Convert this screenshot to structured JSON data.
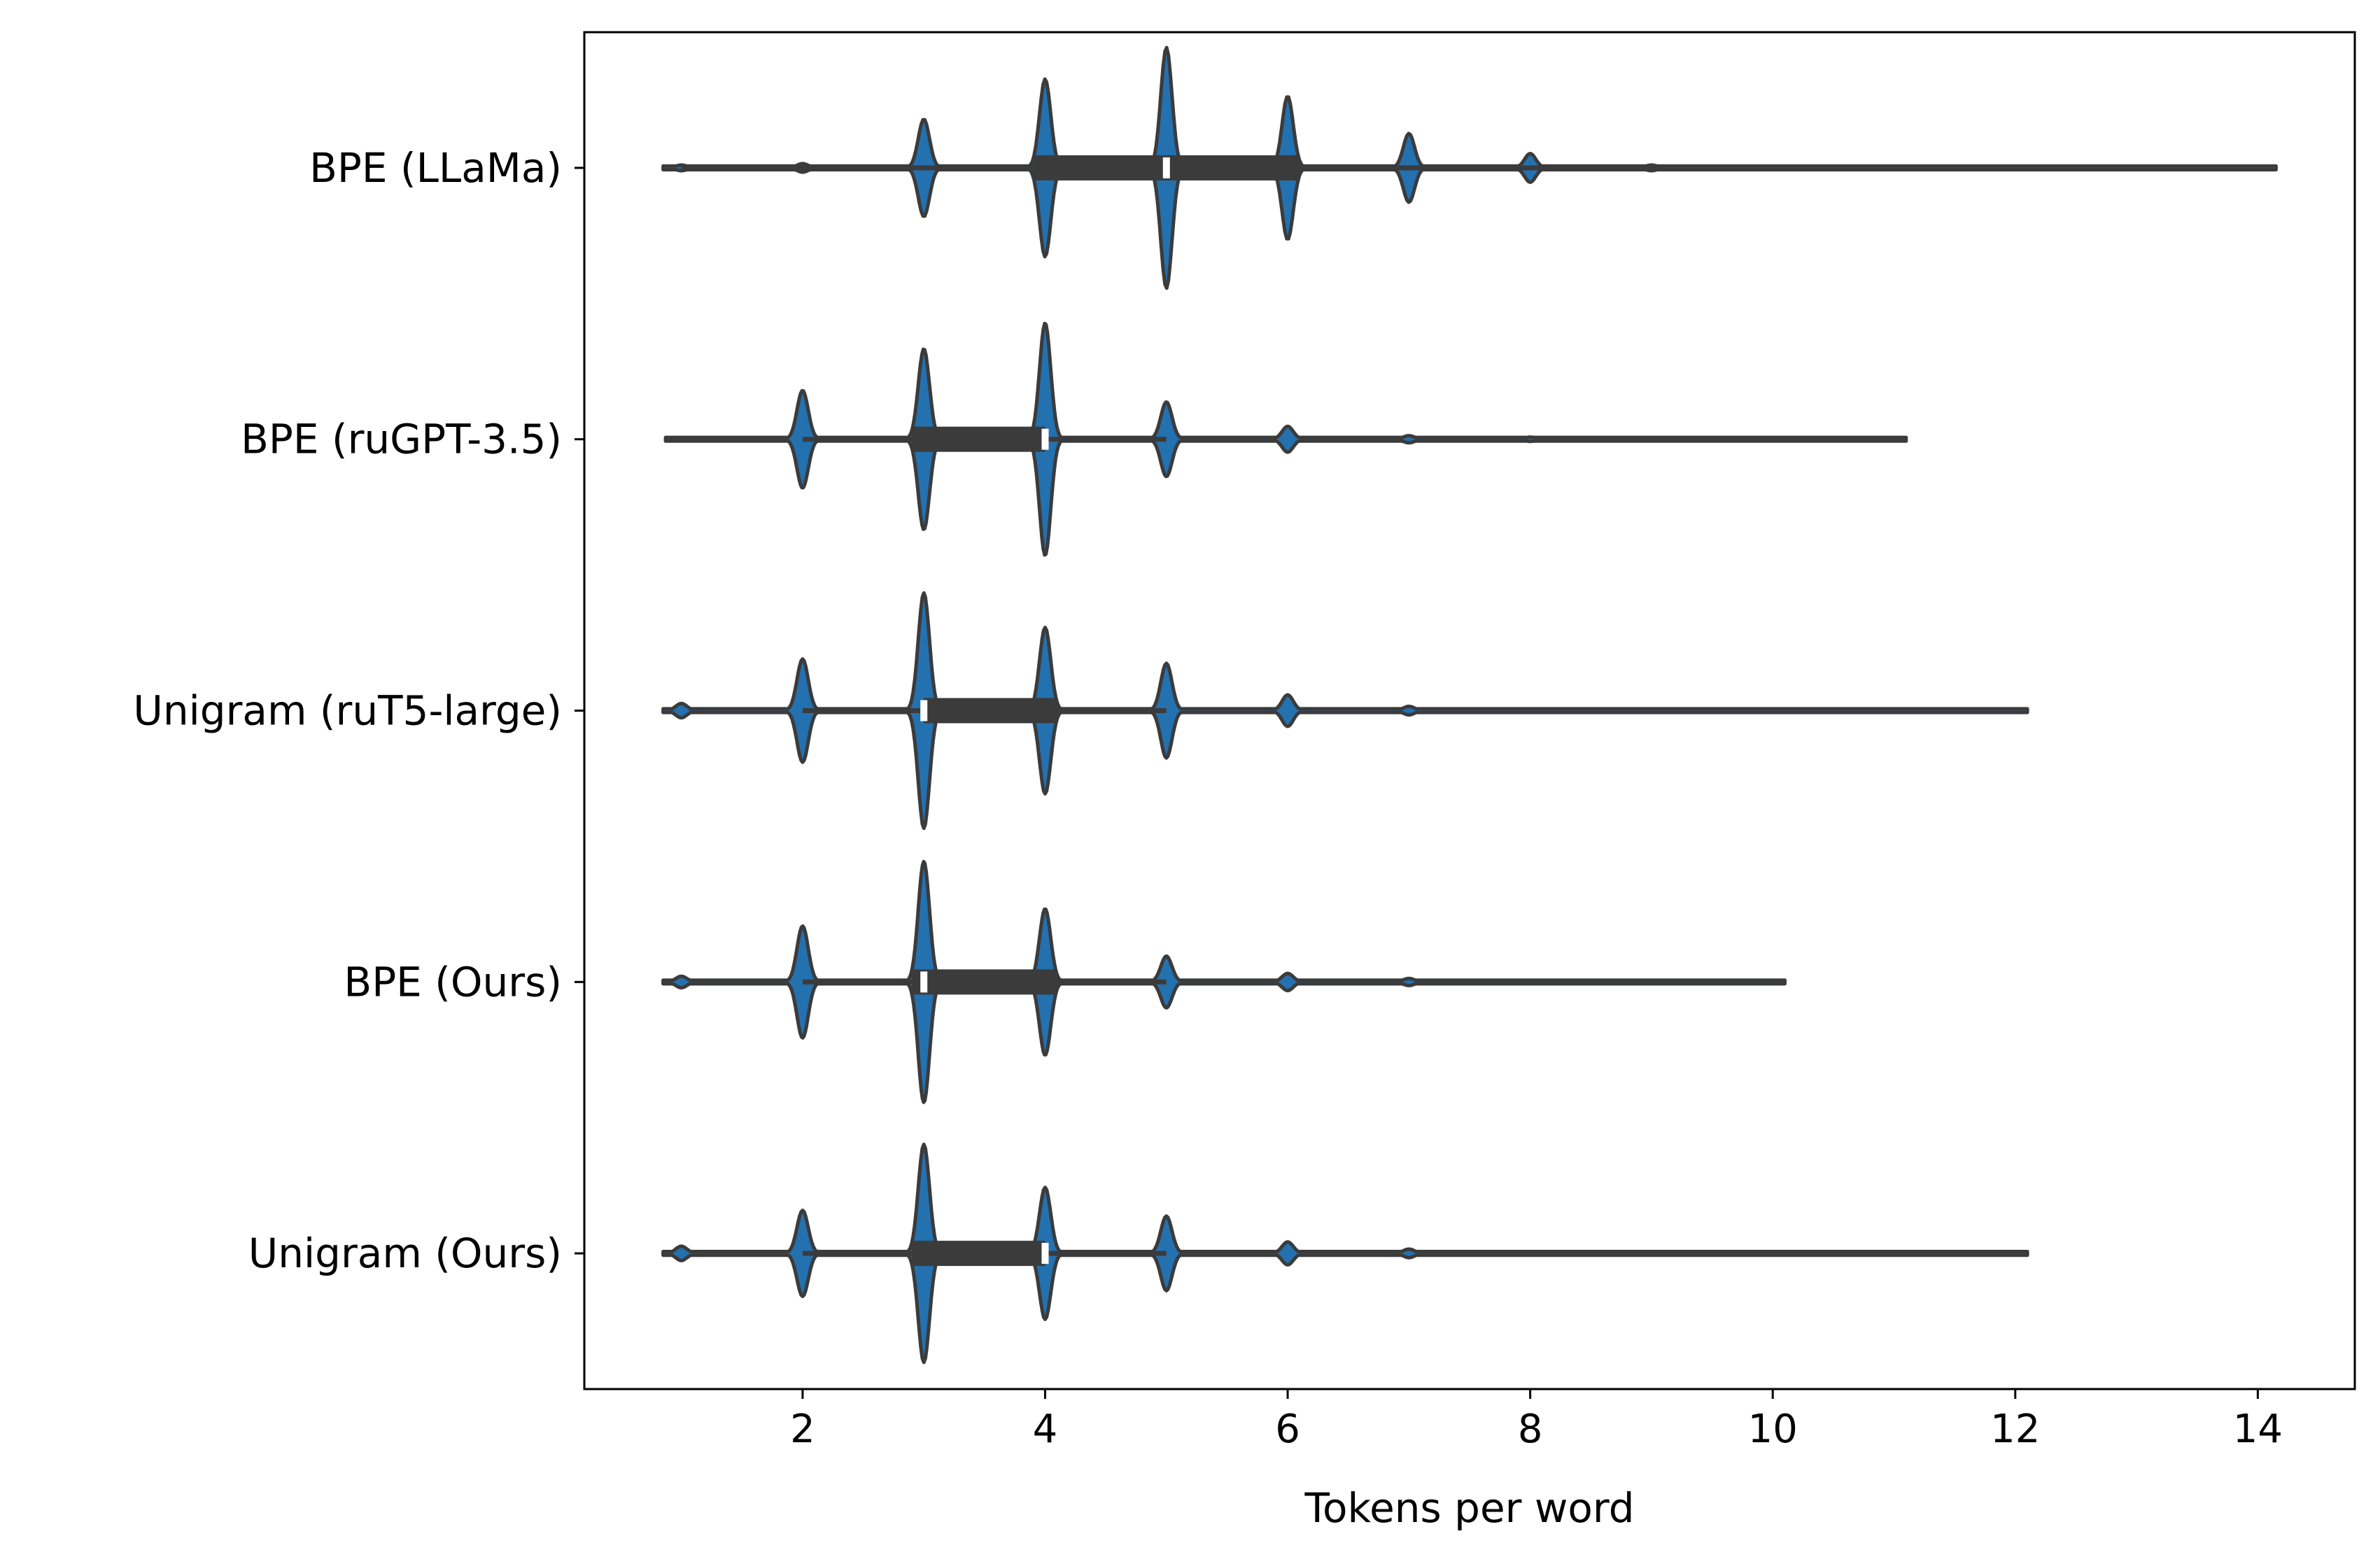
{
  "chart_data": {
    "type": "violin",
    "orientation": "horizontal",
    "xlabel": "Tokens per word",
    "ylabel": "",
    "xlim": [
      0.2,
      14.8
    ],
    "xticks": [
      2,
      4,
      6,
      8,
      10,
      12,
      14
    ],
    "grid": false,
    "colors": {
      "fill": "#2471b0",
      "edge": "#3b3b3b",
      "median": "#ffffff"
    },
    "categories": [
      "BPE (LLaMa)",
      "BPE (ruGPT-3.5)",
      "Unigram (ruT5-large)",
      "BPE (Ours)",
      "Unigram (Ours)"
    ],
    "series": [
      {
        "name": "BPE (LLaMa)",
        "min": 0.85,
        "max": 14.15,
        "q1": 3.9,
        "median": 5.0,
        "q3": 6.1,
        "whisker": [
          1.0,
          9.1
        ],
        "peaks": [
          [
            1,
            0.02
          ],
          [
            2,
            0.03
          ],
          [
            3,
            0.34
          ],
          [
            4,
            0.62
          ],
          [
            5,
            0.84
          ],
          [
            6,
            0.5
          ],
          [
            7,
            0.24
          ],
          [
            8,
            0.1
          ],
          [
            9,
            0.02
          ]
        ]
      },
      {
        "name": "BPE (ruGPT-3.5)",
        "min": 0.87,
        "max": 11.1,
        "q1": 2.9,
        "median": 4.0,
        "q3": 4.0,
        "whisker": [
          2.0,
          5.0
        ],
        "peaks": [
          [
            2,
            0.34
          ],
          [
            3,
            0.63
          ],
          [
            4,
            0.81
          ],
          [
            5,
            0.26
          ],
          [
            6,
            0.09
          ],
          [
            7,
            0.025
          ],
          [
            8,
            0.015
          ]
        ]
      },
      {
        "name": "Unigram (ruT5-large)",
        "min": 0.85,
        "max": 12.1,
        "q1": 3.0,
        "median": 3.0,
        "q3": 4.1,
        "whisker": [
          2.0,
          5.0
        ],
        "peaks": [
          [
            1,
            0.05
          ],
          [
            2,
            0.36
          ],
          [
            3,
            0.82
          ],
          [
            4,
            0.58
          ],
          [
            5,
            0.33
          ],
          [
            6,
            0.11
          ],
          [
            7,
            0.03
          ],
          [
            8,
            0.01
          ]
        ]
      },
      {
        "name": "BPE (Ours)",
        "min": 0.85,
        "max": 10.1,
        "q1": 2.9,
        "median": 3.0,
        "q3": 4.1,
        "whisker": [
          2.0,
          5.0
        ],
        "peaks": [
          [
            1,
            0.04
          ],
          [
            2,
            0.39
          ],
          [
            3,
            0.84
          ],
          [
            4,
            0.51
          ],
          [
            5,
            0.18
          ],
          [
            6,
            0.06
          ],
          [
            7,
            0.025
          ],
          [
            8,
            0.01
          ]
        ]
      },
      {
        "name": "Unigram (Ours)",
        "min": 0.85,
        "max": 12.1,
        "q1": 2.9,
        "median": 4.0,
        "q3": 4.0,
        "whisker": [
          2.0,
          5.0
        ],
        "peaks": [
          [
            1,
            0.05
          ],
          [
            2,
            0.3
          ],
          [
            3,
            0.76
          ],
          [
            4,
            0.46
          ],
          [
            5,
            0.26
          ],
          [
            6,
            0.08
          ],
          [
            7,
            0.03
          ],
          [
            8,
            0.01
          ]
        ]
      }
    ]
  }
}
